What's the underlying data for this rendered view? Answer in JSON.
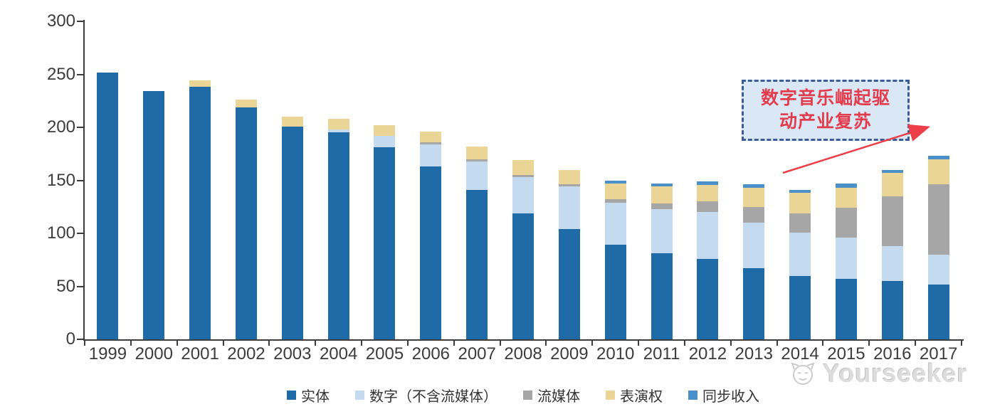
{
  "chart_data": {
    "type": "bar",
    "variant": "stacked",
    "categories": [
      "1999",
      "2000",
      "2001",
      "2002",
      "2003",
      "2004",
      "2005",
      "2006",
      "2007",
      "2008",
      "2009",
      "2010",
      "2011",
      "2012",
      "2013",
      "2014",
      "2015",
      "2016",
      "2017"
    ],
    "series": [
      {
        "name": "实体",
        "color": "#1f6ba7",
        "values": [
          252,
          234,
          238,
          219,
          201,
          195,
          181,
          163,
          141,
          119,
          104,
          89,
          81,
          76,
          67,
          60,
          57,
          55,
          52
        ]
      },
      {
        "name": "数字（不含流媒体）",
        "color": "#c4daef",
        "values": [
          0,
          0,
          0,
          0,
          0,
          3,
          11,
          21,
          27,
          34,
          40,
          40,
          42,
          44,
          43,
          41,
          39,
          33,
          28
        ]
      },
      {
        "name": "流媒体",
        "color": "#a6a6a6",
        "values": [
          0,
          0,
          0,
          0,
          0,
          0,
          0,
          2,
          2,
          2,
          2,
          3,
          5,
          10,
          15,
          18,
          28,
          47,
          66
        ]
      },
      {
        "name": "表演权",
        "color": "#ead597",
        "values": [
          0,
          0,
          6,
          7,
          9,
          10,
          10,
          10,
          12,
          14,
          14,
          15,
          16,
          16,
          18,
          19,
          19,
          22,
          24
        ]
      },
      {
        "name": "同步收入",
        "color": "#4b90c9",
        "values": [
          0,
          0,
          0,
          0,
          0,
          0,
          0,
          0,
          0,
          0,
          0,
          3,
          3,
          3,
          3,
          3,
          4,
          3,
          3
        ]
      }
    ],
    "title": "",
    "xlabel": "",
    "ylabel": "",
    "ylim": [
      0,
      300
    ],
    "yticks": [
      0,
      50,
      100,
      150,
      200,
      250,
      300
    ],
    "grid": false,
    "legend_position": "bottom"
  },
  "annotation": {
    "line1": "数字音乐崛起驱",
    "line2": "动产业复苏",
    "text_color": "#e23c4d",
    "border_color": "#3c5c99",
    "background_color": "#dae7f5",
    "arrow_color": "#ed3f49"
  },
  "watermark": {
    "text": "Yourseeker"
  }
}
